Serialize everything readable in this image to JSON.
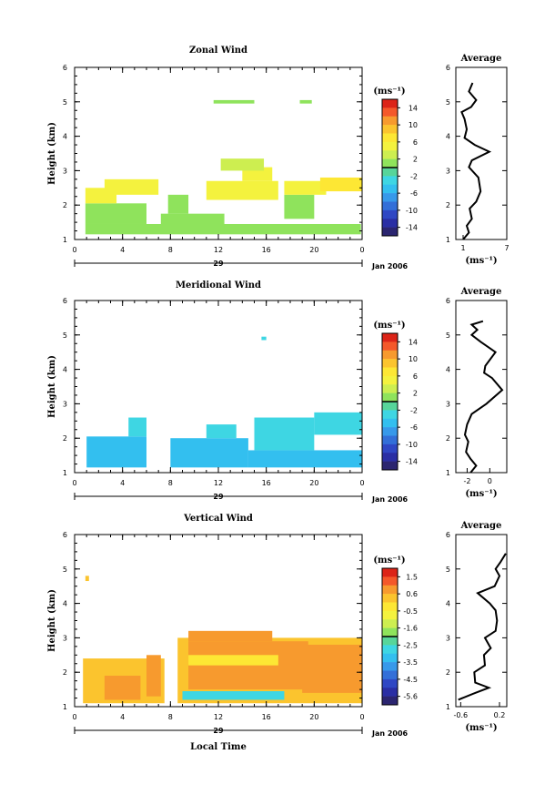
{
  "colors": {
    "colorbar": [
      "#dc2418",
      "#f4582a",
      "#f79a2e",
      "#fbc42e",
      "#fde734",
      "#f4f23e",
      "#cdee50",
      "#8fe35c",
      "#57d59a",
      "#3ed6e3",
      "#33bfef",
      "#3799ea",
      "#336fd8",
      "#2f47c4",
      "#2a2ea4",
      "#2b2570"
    ],
    "line": "#000000"
  },
  "chart_data": [
    {
      "type": "heatmap",
      "name": "zonal",
      "title": "Zonal Wind",
      "ylabel": "Height (km)",
      "xlabel": "",
      "x_ticks": [
        "0",
        "4",
        "8",
        "12",
        "16",
        "20",
        "0"
      ],
      "xlim": [
        0,
        24
      ],
      "y_ticks": [
        "1",
        "2",
        "3",
        "4",
        "5",
        "6"
      ],
      "ylim": [
        1,
        6
      ],
      "day_label": "29",
      "date_label": "Jan 2006",
      "colorbar": {
        "unit": "(ms⁻¹)",
        "labels": [
          "14",
          "10",
          "6",
          "2",
          "-2",
          "-6",
          "-10",
          "-14"
        ],
        "range": [
          -16,
          16
        ]
      },
      "cells": [
        {
          "t0": 0.9,
          "t1": 23.9,
          "h0": 1.15,
          "h1": 1.45,
          "v": 1
        },
        {
          "t0": 0.9,
          "t1": 6.0,
          "h0": 1.45,
          "h1": 2.05,
          "v": 2
        },
        {
          "t0": 0.9,
          "t1": 3.5,
          "h0": 2.05,
          "h1": 2.5,
          "v": 5
        },
        {
          "t0": 2.5,
          "t1": 7.0,
          "h0": 2.3,
          "h1": 2.75,
          "v": 6
        },
        {
          "t0": 7.2,
          "t1": 12.5,
          "h0": 1.2,
          "h1": 1.75,
          "v": 2
        },
        {
          "t0": 7.8,
          "t1": 9.5,
          "h0": 1.75,
          "h1": 2.3,
          "v": 1
        },
        {
          "t0": 11.0,
          "t1": 17.0,
          "h0": 2.15,
          "h1": 2.7,
          "v": 6
        },
        {
          "t0": 14.0,
          "t1": 16.5,
          "h0": 2.7,
          "h1": 3.1,
          "v": 5
        },
        {
          "t0": 17.5,
          "t1": 20.0,
          "h0": 1.6,
          "h1": 2.3,
          "v": 2
        },
        {
          "t0": 17.5,
          "t1": 21.0,
          "h0": 2.3,
          "h1": 2.7,
          "v": 6
        },
        {
          "t0": 20.5,
          "t1": 24.0,
          "h0": 2.4,
          "h1": 2.8,
          "v": 8
        },
        {
          "t0": 12.2,
          "t1": 15.8,
          "h0": 3.0,
          "h1": 3.35,
          "v": 3
        },
        {
          "t0": 11.6,
          "t1": 15.0,
          "h0": 4.95,
          "h1": 5.05,
          "v": 1
        },
        {
          "t0": 18.8,
          "t1": 19.8,
          "h0": 4.95,
          "h1": 5.05,
          "v": 1
        }
      ],
      "profile": {
        "title": "Average",
        "xlabel": "(ms⁻¹)",
        "x_ticks": [
          "1",
          "7"
        ],
        "xlim": [
          0,
          7
        ],
        "points": [
          [
            1.0,
            1.0
          ],
          [
            1.8,
            1.2
          ],
          [
            1.5,
            1.4
          ],
          [
            2.2,
            1.6
          ],
          [
            1.9,
            1.9
          ],
          [
            2.8,
            2.1
          ],
          [
            3.4,
            2.4
          ],
          [
            3.1,
            2.8
          ],
          [
            1.8,
            3.1
          ],
          [
            2.2,
            3.3
          ],
          [
            4.6,
            3.55
          ],
          [
            2.6,
            3.75
          ],
          [
            1.2,
            3.95
          ],
          [
            1.5,
            4.2
          ],
          [
            1.2,
            4.5
          ],
          [
            0.8,
            4.7
          ],
          [
            2.1,
            4.85
          ],
          [
            2.8,
            5.05
          ],
          [
            1.8,
            5.3
          ],
          [
            2.3,
            5.55
          ]
        ]
      }
    },
    {
      "type": "heatmap",
      "name": "meridional",
      "title": "Meridional Wind",
      "ylabel": "Height (km)",
      "xlabel": "",
      "x_ticks": [
        "0",
        "4",
        "8",
        "12",
        "16",
        "20",
        "0"
      ],
      "xlim": [
        0,
        24
      ],
      "y_ticks": [
        "1",
        "2",
        "3",
        "4",
        "5",
        "6"
      ],
      "ylim": [
        1,
        6
      ],
      "day_label": "29",
      "date_label": "Jan 2006",
      "colorbar": {
        "unit": "(ms⁻¹)",
        "labels": [
          "14",
          "10",
          "6",
          "2",
          "-2",
          "-6",
          "-10",
          "-14"
        ],
        "range": [
          -16,
          16
        ]
      },
      "cells": [
        {
          "t0": 1.0,
          "t1": 6.0,
          "h0": 1.15,
          "h1": 2.05,
          "v": -4
        },
        {
          "t0": 4.5,
          "t1": 6.0,
          "h0": 2.05,
          "h1": 2.6,
          "v": -3
        },
        {
          "t0": 8.0,
          "t1": 14.5,
          "h0": 1.15,
          "h1": 2.0,
          "v": -4
        },
        {
          "t0": 14.5,
          "t1": 24.0,
          "h0": 1.15,
          "h1": 1.65,
          "v": -5
        },
        {
          "t0": 15.0,
          "t1": 20.0,
          "h0": 1.65,
          "h1": 2.6,
          "v": -3
        },
        {
          "t0": 20.0,
          "t1": 24.0,
          "h0": 2.1,
          "h1": 2.75,
          "v": -3
        },
        {
          "t0": 11.0,
          "t1": 13.5,
          "h0": 2.0,
          "h1": 2.4,
          "v": -3
        },
        {
          "t0": 15.6,
          "t1": 16.0,
          "h0": 4.85,
          "h1": 4.95,
          "v": -3
        }
      ],
      "profile": {
        "title": "Average",
        "xlabel": "(ms⁻¹)",
        "x_ticks": [
          "-2",
          "0"
        ],
        "xlim": [
          -3,
          1.5
        ],
        "points": [
          [
            -1.7,
            1.0
          ],
          [
            -1.2,
            1.2
          ],
          [
            -1.7,
            1.4
          ],
          [
            -2.1,
            1.6
          ],
          [
            -1.9,
            1.9
          ],
          [
            -2.2,
            2.1
          ],
          [
            -2.0,
            2.4
          ],
          [
            -1.6,
            2.7
          ],
          [
            -0.3,
            3.0
          ],
          [
            1.1,
            3.4
          ],
          [
            0.2,
            3.75
          ],
          [
            -0.5,
            3.9
          ],
          [
            -0.4,
            4.1
          ],
          [
            0.5,
            4.5
          ],
          [
            -0.8,
            4.8
          ],
          [
            -1.6,
            5.0
          ],
          [
            -1.1,
            5.15
          ],
          [
            -1.6,
            5.3
          ],
          [
            -0.6,
            5.4
          ]
        ]
      }
    },
    {
      "type": "heatmap",
      "name": "vertical",
      "title": "Vertical Wind",
      "ylabel": "Height (km)",
      "xlabel": "Local Time",
      "x_ticks": [
        "0",
        "4",
        "8",
        "12",
        "16",
        "20",
        "0"
      ],
      "xlim": [
        0,
        24
      ],
      "y_ticks": [
        "1",
        "2",
        "3",
        "4",
        "5",
        "6"
      ],
      "ylim": [
        1,
        6
      ],
      "day_label": "29",
      "date_label": "Jan 2006",
      "colorbar": {
        "unit": "(ms⁻¹)",
        "labels": [
          "1.5",
          "0.6",
          "-0.5",
          "-1.6",
          "-2.5",
          "-3.5",
          "-4.5",
          "-5.6"
        ],
        "range": [
          -6.0,
          2.0
        ]
      },
      "cells": [
        {
          "t0": 0.7,
          "t1": 7.5,
          "h0": 1.1,
          "h1": 2.4,
          "v": 0.4
        },
        {
          "t0": 2.5,
          "t1": 5.5,
          "h0": 1.2,
          "h1": 1.9,
          "v": 1.0
        },
        {
          "t0": 6.0,
          "t1": 7.2,
          "h0": 1.3,
          "h1": 2.5,
          "v": 1.0
        },
        {
          "t0": 8.6,
          "t1": 24.0,
          "h0": 1.1,
          "h1": 3.0,
          "v": 0.3
        },
        {
          "t0": 9.5,
          "t1": 19.5,
          "h0": 1.5,
          "h1": 2.9,
          "v": 0.8
        },
        {
          "t0": 9.5,
          "t1": 16.5,
          "h0": 2.9,
          "h1": 3.2,
          "v": 0.6
        },
        {
          "t0": 9.0,
          "t1": 17.5,
          "h0": 1.2,
          "h1": 1.45,
          "v": -2.9
        },
        {
          "t0": 9.5,
          "t1": 17.0,
          "h0": 2.2,
          "h1": 2.5,
          "v": -0.4
        },
        {
          "t0": 19.0,
          "t1": 24.0,
          "h0": 1.4,
          "h1": 2.8,
          "v": 0.9
        },
        {
          "t0": 0.9,
          "t1": 1.2,
          "h0": 4.65,
          "h1": 4.8,
          "v": 0.1
        }
      ],
      "profile": {
        "title": "Average",
        "xlabel": "(ms⁻¹)",
        "x_ticks": [
          "-0.6",
          "0.2"
        ],
        "xlim": [
          -0.7,
          0.35
        ],
        "points": [
          [
            -0.65,
            1.2
          ],
          [
            -0.3,
            1.4
          ],
          [
            -0.02,
            1.55
          ],
          [
            -0.3,
            1.7
          ],
          [
            -0.32,
            2.0
          ],
          [
            -0.1,
            2.2
          ],
          [
            -0.12,
            2.5
          ],
          [
            0.02,
            2.7
          ],
          [
            -0.1,
            3.0
          ],
          [
            0.12,
            3.2
          ],
          [
            0.15,
            3.5
          ],
          [
            0.12,
            3.8
          ],
          [
            0.0,
            4.0
          ],
          [
            -0.25,
            4.3
          ],
          [
            0.1,
            4.5
          ],
          [
            0.2,
            4.8
          ],
          [
            0.12,
            5.0
          ],
          [
            0.22,
            5.2
          ],
          [
            0.33,
            5.45
          ]
        ]
      }
    }
  ]
}
